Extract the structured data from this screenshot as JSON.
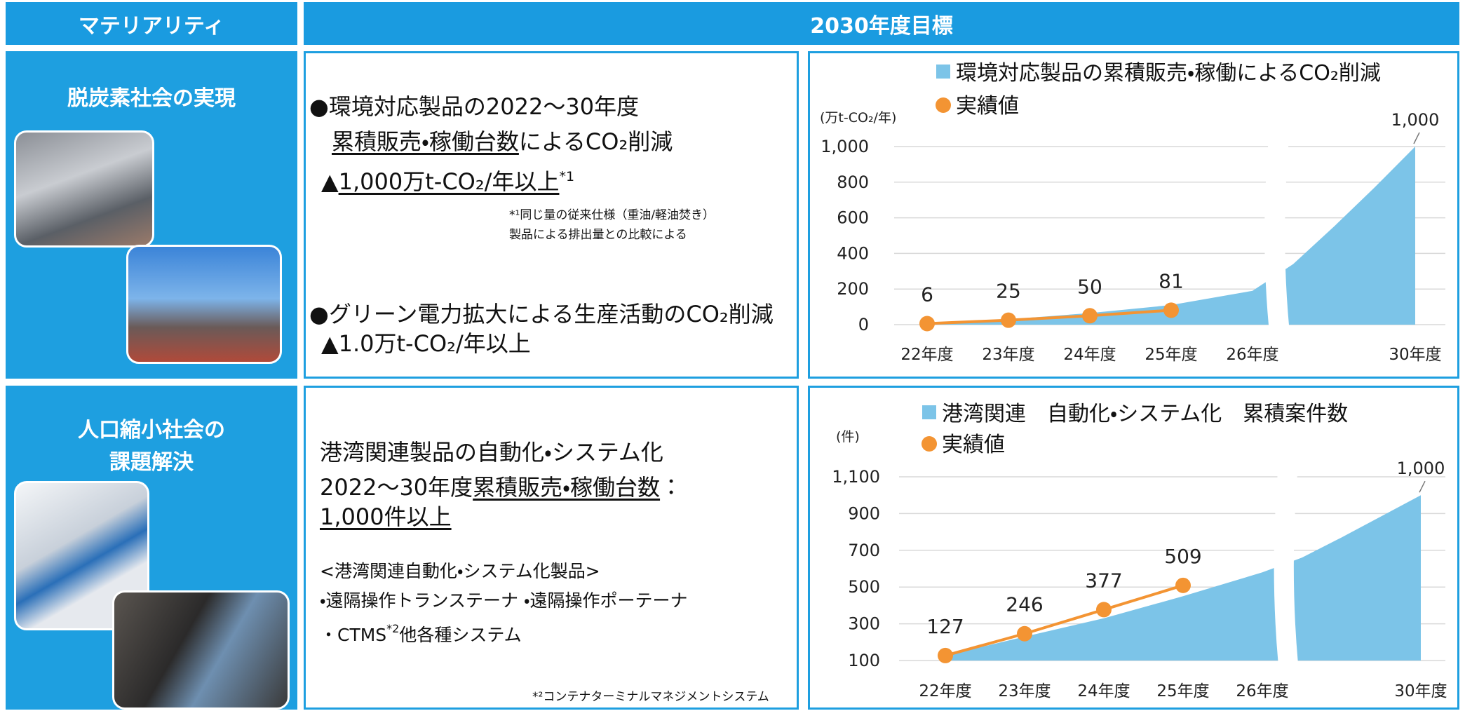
{
  "header": {
    "materiality": "マテリアリティ",
    "target": "2030年度目標"
  },
  "rows": [
    {
      "materiality": [
        "脱炭素社会の実現"
      ],
      "target": {
        "lines": [
          [
            "●環境対応製品の2022～30年度"
          ],
          [
            "累積販売・稼働台数",
            "によるCO₂削減"
          ],
          [
            "▲",
            "1,000万t-CO₂/年以上",
            "*1"
          ]
        ],
        "note": [
          "*¹同じ量の従来仕様（重油/軽油焚き）",
          "製品による排出量との比較による"
        ],
        "lines2": [
          [
            "●グリーン電力拡大による生産活動のCO₂削減"
          ],
          [
            "▲1.0万t-CO₂/年以上"
          ]
        ]
      }
    },
    {
      "materiality": [
        "人口縮小社会の",
        "課題解決"
      ],
      "target": {
        "lines": [
          [
            "港湾関連製品の自動化・システム化"
          ],
          [
            "2022～30年度",
            "累積販売・稼働台数",
            "："
          ],
          [
            "1,000件以上"
          ]
        ],
        "products": [
          [
            "<港湾関連自動化・システム化製品>"
          ],
          [
            "・遠隔操作トランステーナ ・遠隔操作ポーテーナ"
          ],
          [
            "・CTMS",
            "*2",
            "他各種システム"
          ]
        ],
        "note": [
          "*²コンテナターミナルマネジメントシステム"
        ]
      }
    }
  ],
  "chart_data": [
    {
      "type": "area",
      "y_label": "(万t-CO₂/年)",
      "categories": [
        "22年度",
        "23年度",
        "24年度",
        "25年度",
        "26年度",
        null,
        null,
        null,
        "30年度"
      ],
      "ylim": [
        0,
        1000
      ],
      "yticks": [
        0,
        200,
        400,
        600,
        800,
        {
          "value": 1000,
          "label": "1,000"
        }
      ],
      "grid": true,
      "axis_break": true,
      "series": [
        {
          "name": "環境対応製品の累積販売・稼働によるCO₂削減",
          "type": "area",
          "color": "#7cc4e8",
          "values": [
            6,
            30,
            65,
            110,
            190,
            340,
            550,
            770,
            1000
          ],
          "value_labels": [
            null,
            null,
            null,
            null,
            null,
            null,
            null,
            null,
            "1,000"
          ]
        },
        {
          "name": "実績値",
          "type": "line",
          "color": "#f39433",
          "data_labels": true,
          "values": [
            6,
            25,
            50,
            81,
            null,
            null,
            null,
            null,
            null
          ]
        }
      ]
    },
    {
      "type": "area",
      "y_label": "(件)",
      "categories": [
        "22年度",
        "23年度",
        "24年度",
        "25年度",
        "26年度",
        null,
        null,
        null,
        "30年度"
      ],
      "ylim": [
        100,
        1100
      ],
      "yticks": [
        100,
        300,
        500,
        700,
        900,
        {
          "value": 1100,
          "label": "1,100"
        }
      ],
      "grid": true,
      "axis_break": true,
      "series": [
        {
          "name": "港湾関連　自動化・システム化　累積案件数",
          "type": "area",
          "color": "#7cc4e8",
          "values": [
            127,
            230,
            330,
            450,
            580,
            660,
            770,
            885,
            1000
          ],
          "value_labels": [
            null,
            null,
            null,
            null,
            null,
            null,
            null,
            null,
            "1,000"
          ]
        },
        {
          "name": "実績値",
          "type": "line",
          "color": "#f39433",
          "data_labels": true,
          "values": [
            127,
            246,
            377,
            509,
            null,
            null,
            null,
            null,
            null
          ]
        }
      ]
    }
  ]
}
